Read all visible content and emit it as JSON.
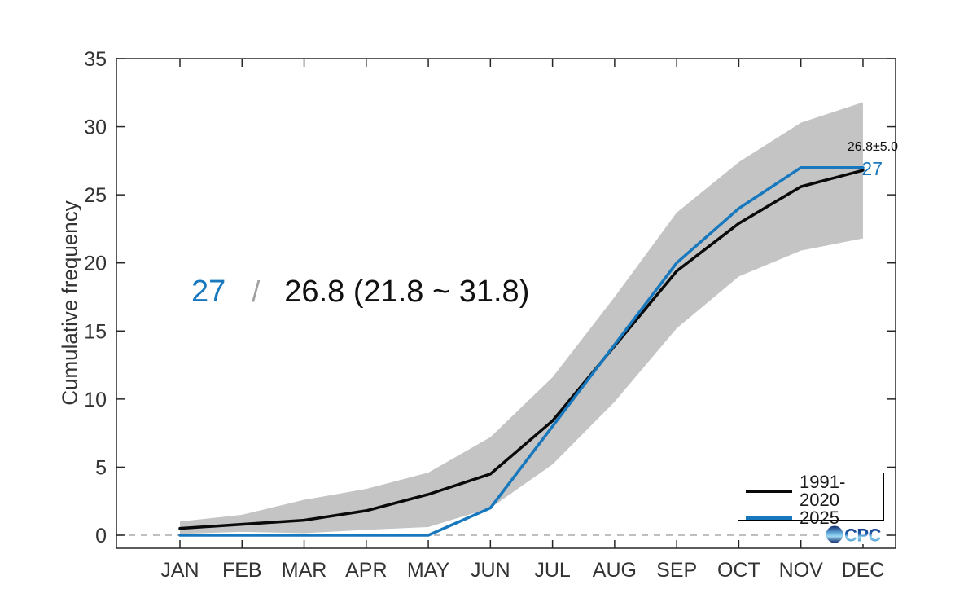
{
  "figure": {
    "ylabel": "Cumulative frequency",
    "annotation": {
      "value_2025": "27",
      "separator": "/",
      "value_climatology": "26.8 (21.8 ~ 31.8)"
    },
    "end_labels": {
      "climatology": "26.8±5.0",
      "latest": "27"
    },
    "legend": {
      "position": "bottom-right",
      "items": [
        {
          "label": "1991-2020",
          "color": "#0a0a0a"
        },
        {
          "label": "2025",
          "color": "#1878be"
        }
      ]
    },
    "logo_text": "CPC",
    "colors": {
      "accent_blue": "#1878be",
      "band_gray": "#c4c4c4",
      "zero_dash_gray": "#aaaaaa",
      "axis": "#262626",
      "tick_text": "#333333"
    }
  },
  "chart_data": {
    "type": "line",
    "title": "",
    "xlabel": "",
    "ylabel": "Cumulative frequency",
    "categories": [
      "JAN",
      "FEB",
      "MAR",
      "APR",
      "MAY",
      "JUN",
      "JUL",
      "AUG",
      "SEP",
      "OCT",
      "NOV",
      "DEC"
    ],
    "yticks": [
      0,
      5,
      10,
      15,
      20,
      25,
      30,
      35
    ],
    "ylim": [
      -1,
      35
    ],
    "grid": false,
    "series": [
      {
        "name": "1991-2020",
        "color": "#0a0a0a",
        "values": [
          0.5,
          0.8,
          1.1,
          1.8,
          3.0,
          4.5,
          8.4,
          13.9,
          19.4,
          22.9,
          25.6,
          26.8
        ]
      },
      {
        "name": "2025",
        "color": "#1878be",
        "values": [
          0,
          0,
          0,
          0,
          0,
          2,
          8,
          14,
          20,
          24,
          27,
          27
        ]
      }
    ],
    "band": {
      "name": "climatology-spread",
      "color": "#c4c4c4",
      "upper": [
        1.0,
        1.5,
        2.6,
        3.4,
        4.6,
        7.2,
        11.6,
        17.5,
        23.7,
        27.4,
        30.3,
        31.8
      ],
      "lower": [
        0.1,
        0.25,
        0.15,
        0.4,
        0.6,
        2.0,
        5.2,
        9.8,
        15.2,
        19.0,
        20.9,
        21.8
      ]
    },
    "zero_line": {
      "y": 0,
      "style": "dashed",
      "color": "#aaaaaa"
    }
  }
}
